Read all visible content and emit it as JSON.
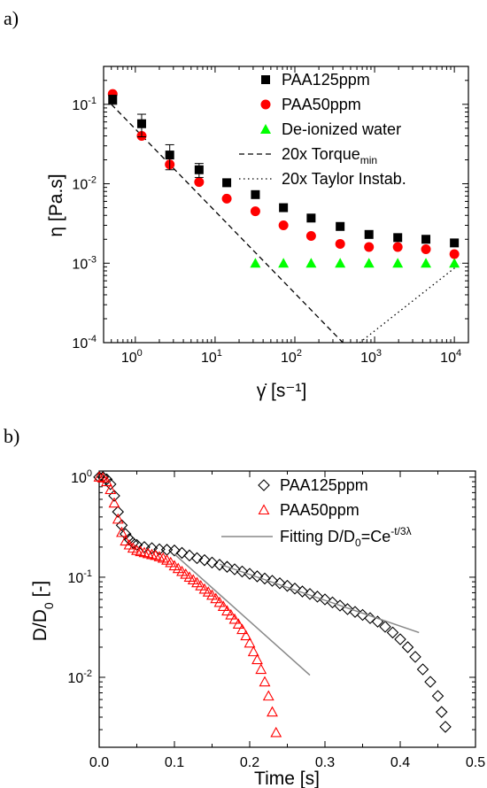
{
  "chart_data": [
    {
      "panel_label": "a)",
      "type": "scatter",
      "xlabel": "γ̇ [s⁻¹]",
      "ylabel": "η [Pa.s]",
      "xscale": "log",
      "yscale": "log",
      "xlim": [
        0.4,
        15000
      ],
      "ylim": [
        0.0001,
        0.3
      ],
      "xticks": [
        {
          "value": 1,
          "base": "10",
          "exp": "0"
        },
        {
          "value": 10,
          "base": "10",
          "exp": "1"
        },
        {
          "value": 100,
          "base": "10",
          "exp": "2"
        },
        {
          "value": 1000,
          "base": "10",
          "exp": "3"
        },
        {
          "value": 10000,
          "base": "10",
          "exp": "4"
        }
      ],
      "yticks": [
        {
          "value": 0.0001,
          "base": "10",
          "exp": "-4"
        },
        {
          "value": 0.001,
          "base": "10",
          "exp": "-3"
        },
        {
          "value": 0.01,
          "base": "10",
          "exp": "-2"
        },
        {
          "value": 0.1,
          "base": "10",
          "exp": "-1"
        }
      ],
      "legend_position": "top-right",
      "series": [
        {
          "name": "PAA125ppm",
          "marker": "square",
          "color": "#000000",
          "x": [
            0.52,
            1.2,
            2.7,
            6.3,
            14,
            32,
            72,
            160,
            370,
            850,
            1950,
            4400,
            10000
          ],
          "y": [
            0.115,
            0.057,
            0.023,
            0.015,
            0.0103,
            0.0073,
            0.005,
            0.0037,
            0.0029,
            0.0023,
            0.0021,
            0.002,
            0.0018
          ],
          "yerr": [
            0.015,
            0.018,
            0.008,
            0.003,
            0,
            0,
            0,
            0,
            0,
            0,
            0,
            0,
            0
          ]
        },
        {
          "name": "PAA50ppm",
          "marker": "circle",
          "color": "#ff0000",
          "x": [
            0.52,
            1.2,
            2.7,
            6.3,
            14,
            32,
            72,
            160,
            370,
            850,
            1950,
            4400,
            10000
          ],
          "y": [
            0.135,
            0.04,
            0.0175,
            0.0105,
            0.0065,
            0.0045,
            0.003,
            0.0022,
            0.00175,
            0.0016,
            0.0016,
            0.0015,
            0.0013
          ]
        },
        {
          "name": "De-ionized water",
          "marker": "triangle",
          "color": "#00ff00",
          "x": [
            32,
            72,
            160,
            370,
            850,
            1950,
            4400,
            10000
          ],
          "y": [
            0.001,
            0.001,
            0.001,
            0.001,
            0.001,
            0.001,
            0.001,
            0.001
          ]
        }
      ],
      "lines": [
        {
          "name": "20x Torque",
          "sub": "min",
          "style": "dashed",
          "color": "#000000",
          "x": [
            0.5,
            400
          ],
          "y": [
            0.1,
            0.0001
          ]
        },
        {
          "name": "20x Taylor Instab.",
          "sub": "",
          "style": "dotted",
          "color": "#000000",
          "x": [
            650,
            12000
          ],
          "y": [
            0.0001,
            0.001
          ]
        }
      ]
    },
    {
      "panel_label": "b)",
      "type": "scatter",
      "xlabel": "Time [s]",
      "ylabel_main": "D/D",
      "ylabel_sub": "0",
      "ylabel_unit": " [-]",
      "xscale": "linear",
      "yscale": "log",
      "xlim": [
        0,
        0.5
      ],
      "ylim": [
        0.002,
        1.15
      ],
      "xticks": [
        0.0,
        0.1,
        0.2,
        0.3,
        0.4,
        0.5
      ],
      "xtick_labels": [
        "0.0",
        "0.1",
        "0.2",
        "0.3",
        "0.4",
        "0.5"
      ],
      "yticks": [
        {
          "value": 0.01,
          "base": "10",
          "exp": "-2"
        },
        {
          "value": 0.1,
          "base": "10",
          "exp": "-1"
        },
        {
          "value": 1,
          "base": "10",
          "exp": "0"
        }
      ],
      "legend_position": "top-right",
      "series": [
        {
          "name": "PAA125ppm",
          "marker": "diamond-open",
          "color": "#000000",
          "x": [
            0.0,
            0.005,
            0.01,
            0.015,
            0.02,
            0.025,
            0.03,
            0.035,
            0.04,
            0.045,
            0.05,
            0.06,
            0.07,
            0.08,
            0.09,
            0.1,
            0.11,
            0.12,
            0.13,
            0.14,
            0.15,
            0.16,
            0.17,
            0.18,
            0.19,
            0.2,
            0.21,
            0.22,
            0.23,
            0.24,
            0.25,
            0.26,
            0.27,
            0.28,
            0.29,
            0.3,
            0.31,
            0.32,
            0.33,
            0.34,
            0.35,
            0.36,
            0.37,
            0.38,
            0.39,
            0.4,
            0.41,
            0.42,
            0.43,
            0.44,
            0.45,
            0.455,
            0.46
          ],
          "y": [
            1.0,
            1.0,
            0.95,
            0.85,
            0.65,
            0.45,
            0.33,
            0.27,
            0.24,
            0.22,
            0.21,
            0.2,
            0.195,
            0.19,
            0.188,
            0.185,
            0.175,
            0.165,
            0.155,
            0.148,
            0.14,
            0.133,
            0.127,
            0.12,
            0.114,
            0.108,
            0.102,
            0.097,
            0.092,
            0.087,
            0.082,
            0.077,
            0.072,
            0.068,
            0.064,
            0.06,
            0.056,
            0.052,
            0.048,
            0.045,
            0.042,
            0.039,
            0.036,
            0.032,
            0.028,
            0.024,
            0.02,
            0.016,
            0.012,
            0.009,
            0.0065,
            0.0045,
            0.0032
          ]
        },
        {
          "name": "PAA50ppm",
          "marker": "triangle-open",
          "color": "#ff0000",
          "x": [
            0.0,
            0.005,
            0.01,
            0.015,
            0.02,
            0.025,
            0.03,
            0.035,
            0.04,
            0.045,
            0.05,
            0.055,
            0.06,
            0.065,
            0.07,
            0.075,
            0.08,
            0.085,
            0.09,
            0.095,
            0.1,
            0.105,
            0.11,
            0.115,
            0.12,
            0.125,
            0.13,
            0.135,
            0.14,
            0.145,
            0.15,
            0.155,
            0.16,
            0.165,
            0.17,
            0.175,
            0.18,
            0.185,
            0.19,
            0.195,
            0.2,
            0.205,
            0.21,
            0.215,
            0.22,
            0.225,
            0.23,
            0.235
          ],
          "y": [
            1.0,
            0.98,
            0.9,
            0.75,
            0.55,
            0.38,
            0.28,
            0.23,
            0.21,
            0.195,
            0.185,
            0.18,
            0.176,
            0.172,
            0.168,
            0.165,
            0.16,
            0.155,
            0.148,
            0.14,
            0.13,
            0.122,
            0.114,
            0.107,
            0.1,
            0.094,
            0.088,
            0.082,
            0.076,
            0.071,
            0.066,
            0.061,
            0.056,
            0.051,
            0.046,
            0.042,
            0.038,
            0.034,
            0.03,
            0.026,
            0.022,
            0.018,
            0.015,
            0.012,
            0.009,
            0.0065,
            0.0045,
            0.0028
          ]
        }
      ],
      "fit_lines": [
        {
          "x": [
            0.1,
            0.28
          ],
          "y": [
            0.17,
            0.0105
          ],
          "color": "#888888"
        },
        {
          "x": [
            0.16,
            0.425
          ],
          "y": [
            0.135,
            0.028
          ],
          "color": "#888888"
        }
      ],
      "fit_legend": {
        "prefix": "Fitting D/D",
        "sub": "0",
        "mid": "=Ce",
        "sup": "-t/3λ",
        "color": "#888888"
      }
    }
  ]
}
